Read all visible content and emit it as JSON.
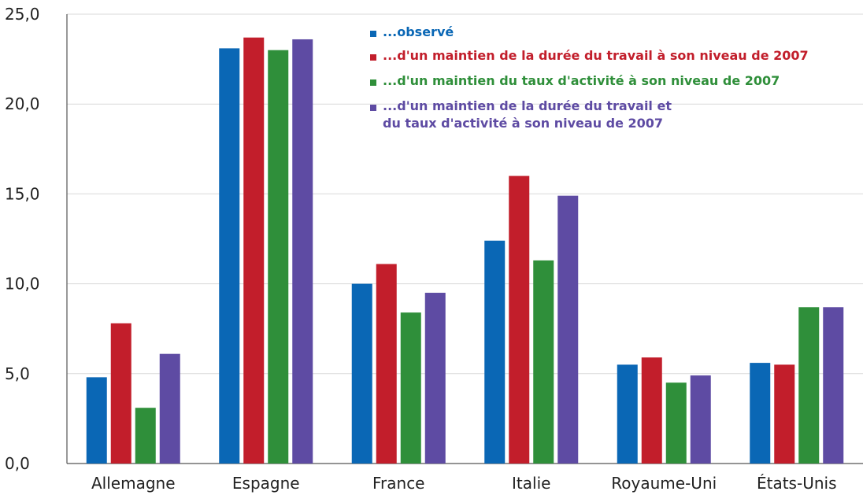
{
  "chart_data": {
    "type": "bar",
    "categories": [
      "Allemagne",
      "Espagne",
      "France",
      "Italie",
      "Royaume-Uni",
      "États-Unis"
    ],
    "series": [
      {
        "name": "...observé",
        "color": "#0a67b5",
        "values": [
          4.8,
          23.1,
          10.0,
          12.4,
          5.5,
          5.6
        ]
      },
      {
        "name": "...d'un maintien de la durée du travail à son niveau de 2007",
        "color": "#c21e2b",
        "values": [
          7.8,
          23.7,
          11.1,
          16.0,
          5.9,
          5.5
        ]
      },
      {
        "name": "...d'un maintien du taux d'activité à son niveau de 2007",
        "color": "#2f8f3a",
        "values": [
          3.1,
          23.0,
          8.4,
          11.3,
          4.5,
          8.7
        ]
      },
      {
        "name": "...d'un maintien de la durée du travail et\ndu taux d'activité à son niveau de 2007",
        "color": "#5e4ba3",
        "values": [
          6.1,
          23.6,
          9.5,
          14.9,
          4.9,
          8.7
        ]
      }
    ],
    "yticks": [
      "0,0",
      "5,0",
      "10,0",
      "15,0",
      "20,0",
      "25,0"
    ],
    "ylim": [
      0,
      25
    ],
    "grid": true,
    "legend_position": "top-center",
    "xlabel": "",
    "ylabel": ""
  }
}
